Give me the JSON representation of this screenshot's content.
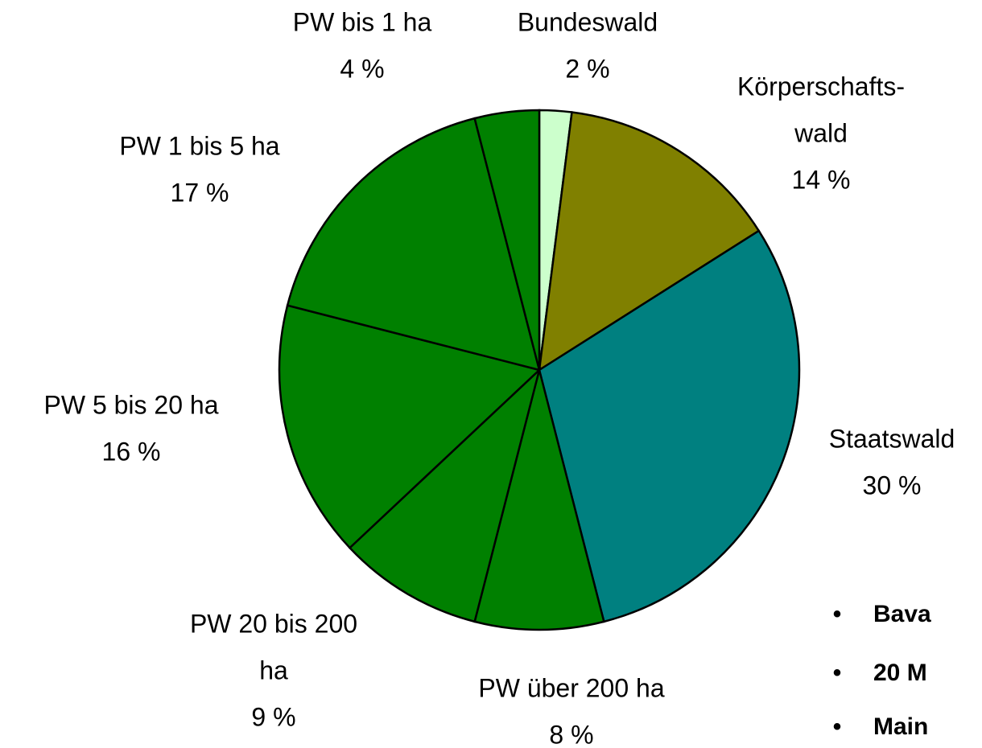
{
  "chart_data": {
    "type": "pie",
    "categories": [
      [
        "Bundeswald"
      ],
      [
        "Körperschafts-",
        "wald"
      ],
      [
        "Staatswald"
      ],
      [
        "PW über 200 ha"
      ],
      [
        "PW 20 bis 200",
        "ha"
      ],
      [
        "PW 5 bis 20 ha"
      ],
      [
        "PW 1 bis 5 ha"
      ],
      [
        "PW bis 1 ha"
      ]
    ],
    "values": [
      2,
      14,
      30,
      8,
      9,
      16,
      17,
      4
    ],
    "value_labels": [
      "2 %",
      "14 %",
      "30 %",
      "8 %",
      "9 %",
      "16 %",
      "17 %",
      "4 %"
    ],
    "colors": [
      "#ccffcc",
      "#808000",
      "#008080",
      "#008000",
      "#008000",
      "#008000",
      "#008000",
      "#008000"
    ]
  },
  "bullets": [
    "Bava",
    "20 M",
    "Main"
  ]
}
